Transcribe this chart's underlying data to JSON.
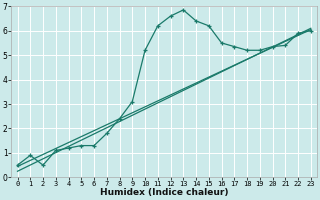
{
  "xlabel": "Humidex (Indice chaleur)",
  "bg_color": "#cceaea",
  "grid_color": "#ffffff",
  "line_color": "#1a7a6a",
  "xlim": [
    -0.5,
    23.5
  ],
  "ylim": [
    0,
    7
  ],
  "xticks": [
    0,
    1,
    2,
    3,
    4,
    5,
    6,
    7,
    8,
    9,
    10,
    11,
    12,
    13,
    14,
    15,
    16,
    17,
    18,
    19,
    20,
    21,
    22,
    23
  ],
  "yticks": [
    0,
    1,
    2,
    3,
    4,
    5,
    6,
    7
  ],
  "curve1_x": [
    0,
    1,
    2,
    3,
    4,
    5,
    6,
    7,
    8,
    9,
    10,
    11,
    12,
    13,
    14,
    15,
    16,
    17,
    18,
    19,
    20,
    21,
    22,
    23
  ],
  "curve1_y": [
    0.5,
    0.9,
    0.5,
    1.1,
    1.2,
    1.3,
    1.3,
    1.8,
    2.4,
    3.1,
    5.2,
    6.2,
    6.6,
    6.85,
    6.4,
    6.2,
    5.5,
    5.35,
    5.2,
    5.2,
    5.35,
    5.4,
    5.9,
    6.0
  ],
  "line2_x": [
    0,
    23
  ],
  "line2_y": [
    0.45,
    6.05
  ],
  "line3_x": [
    0,
    23
  ],
  "line3_y": [
    0.25,
    6.1
  ]
}
